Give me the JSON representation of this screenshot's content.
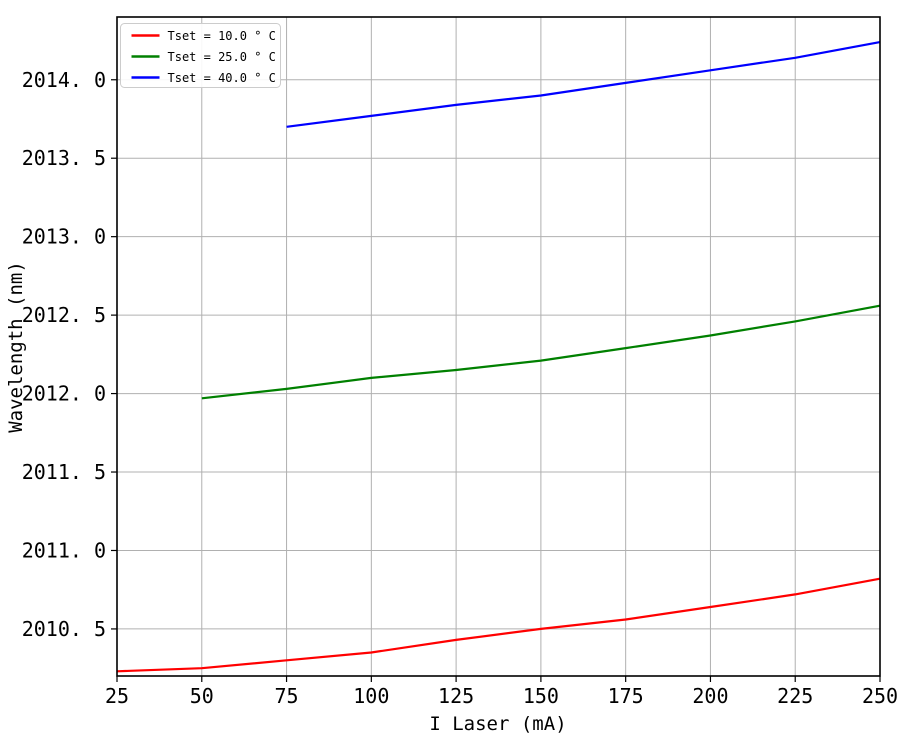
{
  "figure": {
    "background": "#ffffff"
  },
  "chart_data": {
    "type": "line",
    "title": "",
    "xlabel": "I Laser (mA)",
    "ylabel": "Wavelength (nm)",
    "xlim": [
      25,
      250
    ],
    "ylim": [
      2010.2,
      2014.4
    ],
    "xticks": [
      25,
      50,
      75,
      100,
      125,
      150,
      175,
      200,
      225,
      250
    ],
    "xtick_labels": [
      "25",
      "50",
      "75",
      "100",
      "125",
      "150",
      "175",
      "200",
      "225",
      "250"
    ],
    "yticks": [
      2010.5,
      2011.0,
      2011.5,
      2012.0,
      2012.5,
      2013.0,
      2013.5,
      2014.0
    ],
    "ytick_labels": [
      "2010. 5",
      "2011. 0",
      "2011. 5",
      "2012. 0",
      "2012. 5",
      "2013. 0",
      "2013. 5",
      "2014. 0"
    ],
    "grid": true,
    "grid_color": "#b0b0b0",
    "axis_color": "#000000",
    "legend": {
      "position": "upper-left",
      "background": "#ffffff",
      "border_color": "#cccccc"
    },
    "series": [
      {
        "name": "Tset = 10.0 ° C",
        "color": "#ff0000",
        "x": [
          25,
          50,
          75,
          100,
          125,
          150,
          175,
          200,
          225,
          250
        ],
        "y": [
          2010.23,
          2010.25,
          2010.3,
          2010.35,
          2010.43,
          2010.5,
          2010.56,
          2010.64,
          2010.72,
          2010.82
        ]
      },
      {
        "name": "Tset = 25.0 ° C",
        "color": "#008000",
        "x": [
          50,
          75,
          100,
          125,
          150,
          175,
          200,
          225,
          250
        ],
        "y": [
          2011.97,
          2012.03,
          2012.1,
          2012.15,
          2012.21,
          2012.29,
          2012.37,
          2012.46,
          2012.56
        ]
      },
      {
        "name": "Tset = 40.0 ° C",
        "color": "#0000ff",
        "x": [
          75,
          100,
          125,
          150,
          175,
          200,
          225,
          250
        ],
        "y": [
          2013.7,
          2013.77,
          2013.84,
          2013.9,
          2013.98,
          2014.06,
          2014.14,
          2014.24
        ]
      }
    ]
  }
}
